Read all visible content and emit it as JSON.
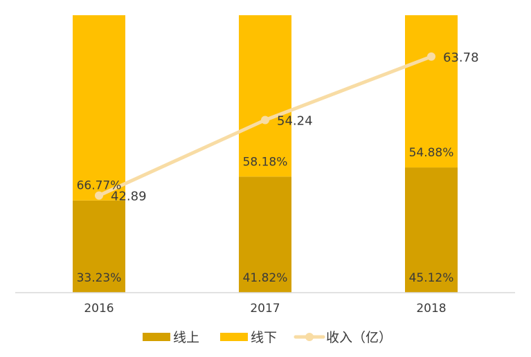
{
  "chart_data": {
    "type": "bar",
    "stacked": true,
    "percent_stacked": true,
    "categories": [
      "2016",
      "2017",
      "2018"
    ],
    "series": [
      {
        "name": "线上",
        "kind": "bar",
        "values": [
          33.23,
          41.82,
          45.12
        ],
        "labels": [
          "33.23%",
          "41.82%",
          "45.12%"
        ],
        "color": "#D4A000"
      },
      {
        "name": "线下",
        "kind": "bar",
        "values": [
          66.77,
          58.18,
          54.88
        ],
        "labels": [
          "66.77%",
          "58.18%",
          "54.88%"
        ],
        "color": "#FFC000"
      },
      {
        "name": "收入（亿）",
        "kind": "line",
        "values": [
          42.89,
          54.24,
          63.78
        ],
        "labels": [
          "42.89",
          "54.24",
          "63.78"
        ],
        "color": "#F8DCA4"
      }
    ],
    "legend_position": "bottom",
    "grid": false
  }
}
